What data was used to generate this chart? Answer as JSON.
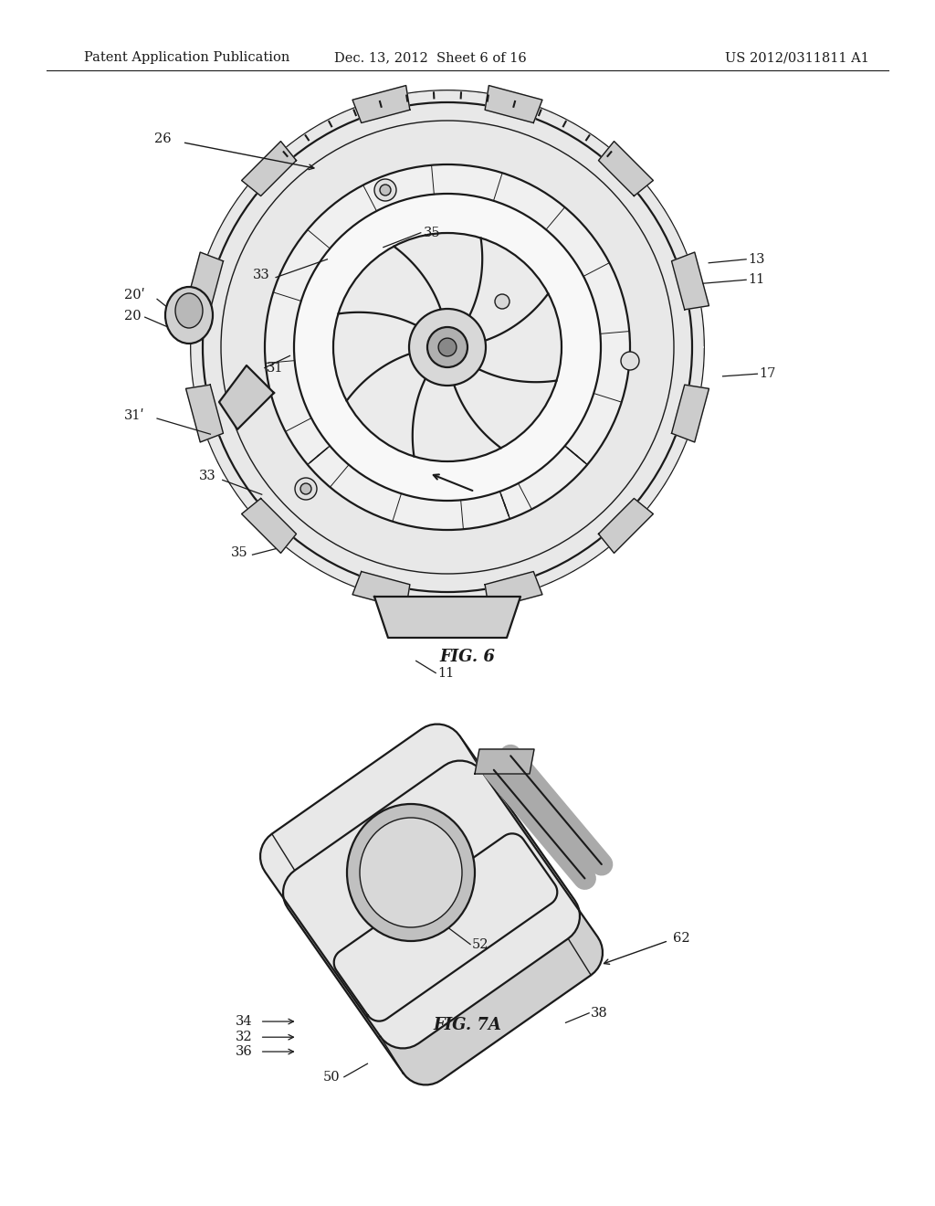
{
  "header_left": "Patent Application Publication",
  "header_mid": "Dec. 13, 2012  Sheet 6 of 16",
  "header_right": "US 2012/0311811 A1",
  "fig6_label": "FIG. 6",
  "fig7a_label": "FIG. 7A",
  "background_color": "#ffffff",
  "line_color": "#1a1a1a",
  "header_fontsize": 10.5,
  "fig_label_fontsize": 13,
  "annotation_fontsize": 10.5
}
